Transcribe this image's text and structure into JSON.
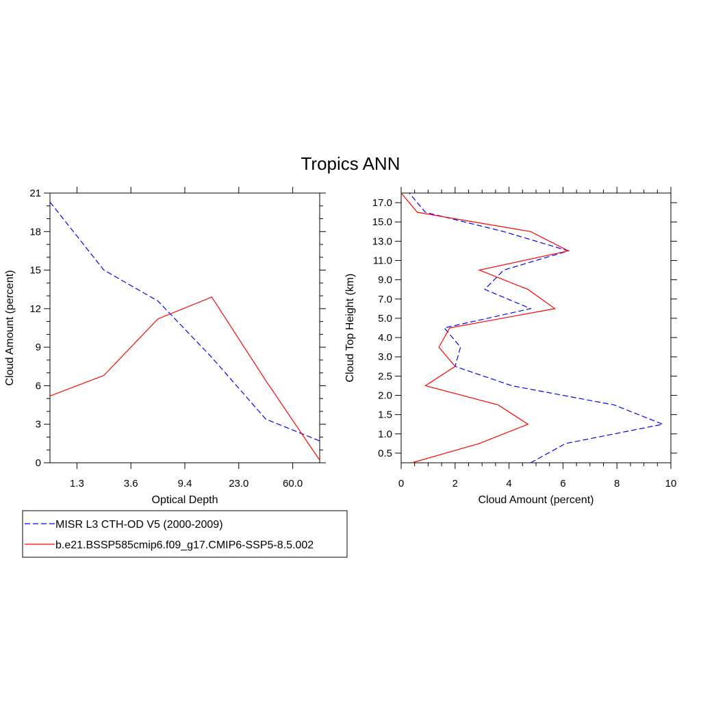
{
  "title": "Tropics ANN",
  "chart_data": [
    {
      "type": "line",
      "xlabel": "Optical Depth",
      "ylabel": "Cloud Amount (percent)",
      "x": [
        0.6,
        2.0,
        5.2,
        14.0,
        40.0,
        100.0
      ],
      "xticks": [
        "1.3",
        "3.6",
        "9.4",
        "23.0",
        "60.0"
      ],
      "yticks": [
        "0",
        "3",
        "6",
        "9",
        "12",
        "15",
        "18",
        "21"
      ],
      "ylim": [
        0,
        21
      ],
      "series": [
        {
          "name": "MISR L3 CTH-OD V5 (2000-2009)",
          "color": "#0000ff",
          "dash": "dashed",
          "values": [
            20.3,
            15.0,
            12.6,
            8.2,
            3.4,
            1.7
          ]
        },
        {
          "name": "b.e21.BSSP585cmip6.f09_g17.CMIP6-SSP5-8.5.002",
          "color": "#ff0000",
          "dash": "solid",
          "values": [
            5.2,
            6.8,
            11.2,
            12.9,
            6.4,
            0.2
          ]
        }
      ]
    },
    {
      "type": "line",
      "xlabel": "Cloud Amount (percent)",
      "ylabel": "Cloud Top Height (km)",
      "xlim": [
        0,
        10
      ],
      "xticks": [
        "0",
        "2",
        "4",
        "6",
        "8",
        "10"
      ],
      "yticks": [
        "0.5",
        "1.0",
        "1.5",
        "2.0",
        "2.5",
        "3.0",
        "4.0",
        "5.0",
        "7.0",
        "9.0",
        "11.0",
        "13.0",
        "15.0",
        "17.0"
      ],
      "series": [
        {
          "name": "MISR L3 CTH-OD V5 (2000-2009)",
          "color": "#0000ff",
          "dash": "dashed",
          "values": [
            4.8,
            6.1,
            9.7,
            7.9,
            4.1,
            2.0,
            2.2,
            1.6,
            4.8,
            3.1,
            3.8,
            6.2,
            3.8,
            0.9,
            0.3
          ]
        },
        {
          "name": "b.e21.BSSP585cmip6.f09_g17.CMIP6-SSP5-8.5.002",
          "color": "#ff0000",
          "dash": "solid",
          "values": [
            0.4,
            2.9,
            4.7,
            3.6,
            0.9,
            2.0,
            1.4,
            1.8,
            5.7,
            4.7,
            2.9,
            6.2,
            4.8,
            0.6,
            0.0
          ]
        }
      ]
    }
  ],
  "legend": [
    {
      "label": "MISR L3 CTH-OD V5 (2000-2009)",
      "color": "#0000ff",
      "dash": "dashed"
    },
    {
      "label": "b.e21.BSSP585cmip6.f09_g17.CMIP6-SSP5-8.5.002",
      "color": "#ff0000",
      "dash": "solid"
    }
  ]
}
